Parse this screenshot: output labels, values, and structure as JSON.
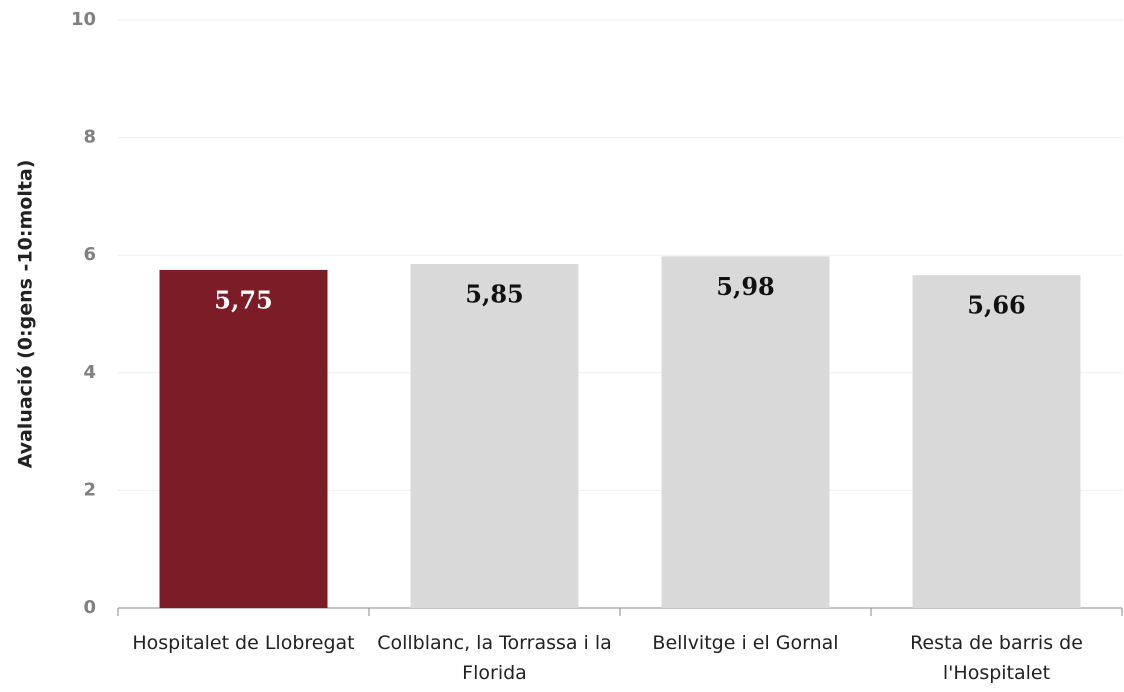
{
  "chart_data": {
    "type": "bar",
    "y_label": "Avaluació (0:gens -10:molta)",
    "categories": [
      "Hospitalet de Llobregat",
      "Collblanc, la Torrassa i la Florida",
      "Bellvitge i el Gornal",
      "Resta de barris de l'Hospitalet"
    ],
    "values": [
      5.75,
      5.85,
      5.98,
      5.66
    ],
    "value_labels": [
      "5,75",
      "5,85",
      "5,98",
      "5,66"
    ],
    "colors": [
      "#7b1c26",
      "#d9d9d9",
      "#d9d9d9",
      "#d9d9d9"
    ],
    "ylim": [
      0,
      10
    ],
    "yticks": [
      0,
      2,
      4,
      6,
      8,
      10
    ],
    "grid": true
  }
}
